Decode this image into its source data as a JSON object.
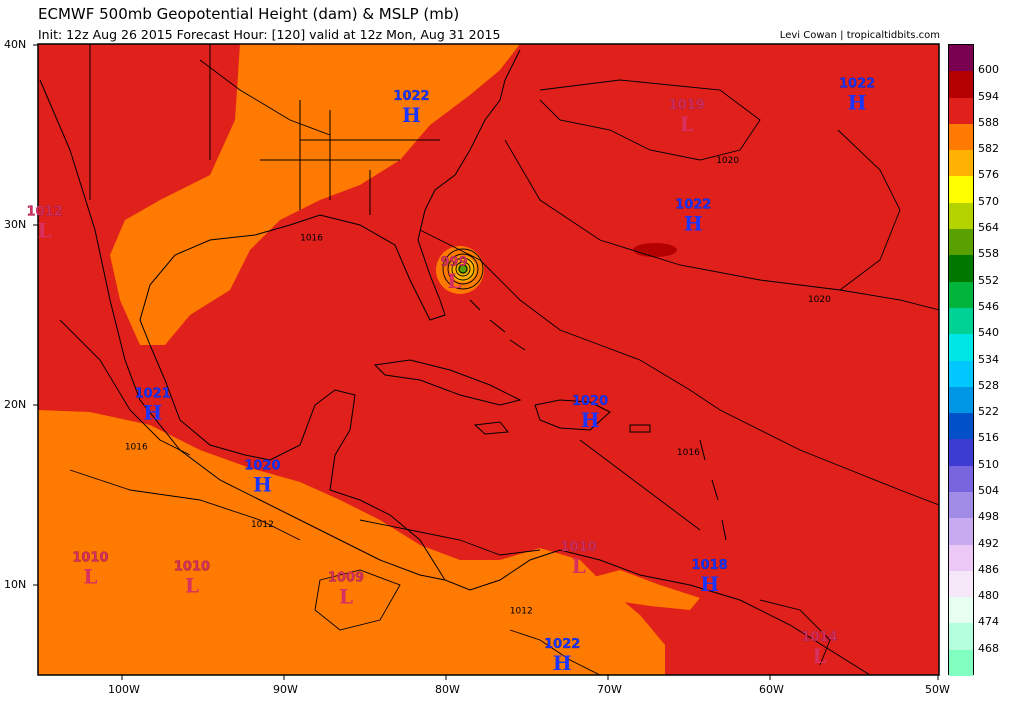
{
  "header": {
    "title": "ECMWF 500mb Geopotential Height (dam) & MSLP (mb)",
    "subtitle": "Init: 12z Aug 26 2015   Forecast Hour: [120]   valid at 12z Mon, Aug 31 2015",
    "credit": "Levi Cowan | tropicaltidbits.com"
  },
  "axes": {
    "lat_labels": [
      "40N",
      "30N",
      "20N",
      "10N"
    ],
    "lon_labels": [
      "100W",
      "90W",
      "80W",
      "70W",
      "60W",
      "50W"
    ]
  },
  "colorbar": {
    "levels": [
      "600",
      "594",
      "588",
      "582",
      "576",
      "570",
      "564",
      "558",
      "552",
      "546",
      "540",
      "534",
      "528",
      "522",
      "516",
      "510",
      "504",
      "498",
      "492",
      "486",
      "480",
      "474",
      "468"
    ],
    "colors": [
      "#7a0050",
      "#b40000",
      "#e0201a",
      "#ff7a00",
      "#ffb000",
      "#ffff00",
      "#b4d200",
      "#5aa000",
      "#007800",
      "#00b43c",
      "#00d296",
      "#00e6e6",
      "#00c8ff",
      "#0096e6",
      "#0050c8",
      "#3c3cd2",
      "#7864dc",
      "#a08ce6",
      "#c8aaf0",
      "#ebc8f5",
      "#f5e6f8",
      "#e6fff0",
      "#b4ffdc",
      "#80ffc0"
    ]
  },
  "pressure_centers": [
    {
      "type": "H",
      "value": "1022",
      "lon": -82.2,
      "lat": 36.0
    },
    {
      "type": "L",
      "value": "1019",
      "lon": -65.4,
      "lat": 35.5
    },
    {
      "type": "H",
      "value": "1022",
      "lon": -55.0,
      "lat": 36.7
    },
    {
      "type": "H",
      "value": "1022",
      "lon": -65.0,
      "lat": 30.0
    },
    {
      "type": "L",
      "value": "1012",
      "lon": -104.6,
      "lat": 29.6
    },
    {
      "type": "L",
      "value": "999",
      "lon": -79.6,
      "lat": 26.8
    },
    {
      "type": "H",
      "value": "1021",
      "lon": -98.0,
      "lat": 19.5
    },
    {
      "type": "H",
      "value": "1020",
      "lon": -71.3,
      "lat": 19.1
    },
    {
      "type": "H",
      "value": "1020",
      "lon": -91.3,
      "lat": 15.5
    },
    {
      "type": "L",
      "value": "1010",
      "lon": -101.8,
      "lat": 10.4
    },
    {
      "type": "L",
      "value": "1010",
      "lon": -95.6,
      "lat": 9.9
    },
    {
      "type": "L",
      "value": "1009",
      "lon": -86.2,
      "lat": 9.3
    },
    {
      "type": "L",
      "value": "1010",
      "lon": -72.0,
      "lat": 11.0
    },
    {
      "type": "H",
      "value": "1018",
      "lon": -64.0,
      "lat": 10.0
    },
    {
      "type": "H",
      "value": "1022",
      "lon": -73.0,
      "lat": 5.6
    },
    {
      "type": "L",
      "value": "1014",
      "lon": -57.3,
      "lat": 6.0
    }
  ],
  "isobar_labels": [
    {
      "text": "1020",
      "lon": -63.6,
      "lat": 33.4
    },
    {
      "text": "1020",
      "lon": -58.0,
      "lat": 25.7
    },
    {
      "text": "1016",
      "lon": -89.0,
      "lat": 29.1
    },
    {
      "text": "1016",
      "lon": -99.7,
      "lat": 17.5
    },
    {
      "text": "1016",
      "lon": -66.0,
      "lat": 17.2
    },
    {
      "text": "1012",
      "lon": -92.0,
      "lat": 13.2
    },
    {
      "text": "1012",
      "lon": -76.2,
      "lat": 8.4
    }
  ]
}
